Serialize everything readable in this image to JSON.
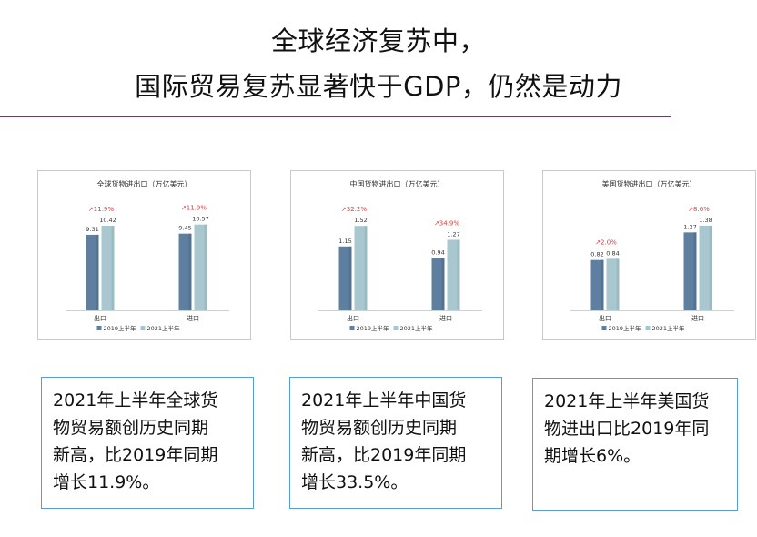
{
  "header": {
    "line1": "全球经济复苏中，",
    "line2": "国际贸易复苏显著快于GDP，仍然是动力"
  },
  "colors": {
    "series_2019": "#5e7f9f",
    "series_2021": "#a9c7cf",
    "growth": "#e03a3a",
    "rule": "#6d3a75",
    "box_border": "#5b9bd5"
  },
  "chart_data": [
    {
      "type": "bar",
      "title": "全球货物进出口（万亿美元）",
      "categories": [
        "出口",
        "进口"
      ],
      "series": [
        {
          "name": "2019上半年",
          "values": [
            9.31,
            9.45
          ],
          "labels": [
            "9.31",
            "9.45"
          ]
        },
        {
          "name": "2021上半年",
          "values": [
            10.42,
            10.57
          ],
          "labels": [
            "10.42",
            "10.57"
          ]
        }
      ],
      "growth": [
        "↗11.9%",
        "↗11.9%"
      ],
      "ylim": [
        0,
        13
      ]
    },
    {
      "type": "bar",
      "title": "中国货物进出口（万亿美元）",
      "categories": [
        "出口",
        "进口"
      ],
      "series": [
        {
          "name": "2019上半年",
          "values": [
            1.15,
            0.94
          ],
          "labels": [
            "1.15",
            "0.94"
          ]
        },
        {
          "name": "2021上半年",
          "values": [
            1.52,
            1.27
          ],
          "labels": [
            "1.52",
            "1.27"
          ]
        }
      ],
      "growth": [
        "↗32.2%",
        "↗34.9%"
      ],
      "ylim": [
        0,
        1.9
      ]
    },
    {
      "type": "bar",
      "title": "美国货物进出口（万亿美元）",
      "categories": [
        "出口",
        "进口"
      ],
      "series": [
        {
          "name": "2019上半年",
          "values": [
            0.82,
            1.27
          ],
          "labels": [
            "0.82",
            "1.27"
          ]
        },
        {
          "name": "2021上半年",
          "values": [
            0.84,
            1.38
          ],
          "labels": [
            "0.84",
            "1.38"
          ]
        }
      ],
      "growth": [
        "↗2.0%",
        "↗8.6%"
      ],
      "ylim": [
        0,
        1.72
      ]
    }
  ],
  "notes": [
    {
      "lines": [
        "2021年上半年全球货",
        "物贸易额创历史同期",
        "新高，比2019年同期",
        "增长11.9%。"
      ]
    },
    {
      "lines": [
        "2021年上半年中国货",
        "物贸易额创历史同期",
        "新高，比2019年同期",
        "增长33.5%。"
      ]
    },
    {
      "lines": [
        "2021年上半年美国货",
        "物进出口比2019年同",
        "期增长6%。"
      ]
    }
  ]
}
